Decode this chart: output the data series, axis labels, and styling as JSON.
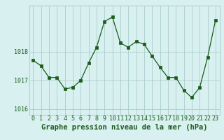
{
  "x": [
    0,
    1,
    2,
    3,
    4,
    5,
    6,
    7,
    8,
    9,
    10,
    11,
    12,
    13,
    14,
    15,
    16,
    17,
    18,
    19,
    20,
    21,
    22,
    23
  ],
  "y": [
    1017.7,
    1017.5,
    1017.1,
    1017.1,
    1016.7,
    1016.75,
    1017.0,
    1017.6,
    1018.15,
    1019.05,
    1019.2,
    1018.3,
    1018.15,
    1018.35,
    1018.25,
    1017.85,
    1017.45,
    1017.1,
    1017.1,
    1016.65,
    1016.4,
    1016.75,
    1017.8,
    1019.1
  ],
  "line_color": "#1a5c1a",
  "marker": "s",
  "marker_size": 2.5,
  "bg_color": "#d8f0f0",
  "grid_color": "#aacccc",
  "xlabel": "Graphe pression niveau de la mer (hPa)",
  "xlabel_color": "#1a5c1a",
  "xlabel_fontsize": 7.5,
  "tick_color": "#1a5c1a",
  "tick_fontsize": 6,
  "yticks": [
    1016,
    1017,
    1018
  ],
  "ylim": [
    1015.8,
    1019.6
  ],
  "xlim": [
    -0.5,
    23.5
  ],
  "xticks": [
    0,
    1,
    2,
    3,
    4,
    5,
    6,
    7,
    8,
    9,
    10,
    11,
    12,
    13,
    14,
    15,
    16,
    17,
    18,
    19,
    20,
    21,
    22,
    23
  ]
}
